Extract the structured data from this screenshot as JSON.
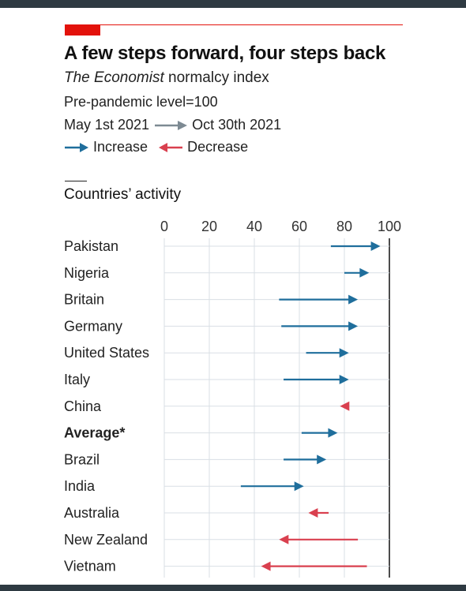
{
  "header": {
    "title": "A few steps forward, four steps back",
    "subtitle_italic": "The Economist",
    "subtitle_rest": " normalcy index",
    "baseline_note": "Pre-pandemic level=100",
    "date_from": "May 1st 2021",
    "date_to": "Oct 30th 2021",
    "legend_increase": "Increase",
    "legend_decrease": "Decrease"
  },
  "section_title": "Countries’ activity",
  "colors": {
    "increase": "#1f6e9c",
    "decrease": "#d9404f",
    "brand_red": "#e3120b",
    "grid": "#d9dfe5"
  },
  "chart_data": {
    "type": "arrow-dot",
    "title": "A few steps forward, four steps back",
    "xlim": [
      0,
      100
    ],
    "xticks": [
      0,
      20,
      40,
      60,
      80,
      100
    ],
    "grid": true,
    "rows": [
      {
        "country": "Pakistan",
        "from": 74,
        "to": 96,
        "direction": "increase",
        "bold": false
      },
      {
        "country": "Nigeria",
        "from": 80,
        "to": 91,
        "direction": "increase",
        "bold": false
      },
      {
        "country": "Britain",
        "from": 51,
        "to": 86,
        "direction": "increase",
        "bold": false
      },
      {
        "country": "Germany",
        "from": 52,
        "to": 86,
        "direction": "increase",
        "bold": false
      },
      {
        "country": "United States",
        "from": 63,
        "to": 82,
        "direction": "increase",
        "bold": false
      },
      {
        "country": "Italy",
        "from": 53,
        "to": 82,
        "direction": "increase",
        "bold": false
      },
      {
        "country": "China",
        "from": 82,
        "to": 78,
        "direction": "decrease",
        "bold": false
      },
      {
        "country": "Average*",
        "from": 61,
        "to": 77,
        "direction": "increase",
        "bold": true
      },
      {
        "country": "Brazil",
        "from": 53,
        "to": 72,
        "direction": "increase",
        "bold": false
      },
      {
        "country": "India",
        "from": 34,
        "to": 62,
        "direction": "increase",
        "bold": false
      },
      {
        "country": "Australia",
        "from": 73,
        "to": 64,
        "direction": "decrease",
        "bold": false
      },
      {
        "country": "New Zealand",
        "from": 86,
        "to": 51,
        "direction": "decrease",
        "bold": false
      },
      {
        "country": "Vietnam",
        "from": 90,
        "to": 43,
        "direction": "decrease",
        "bold": false
      }
    ]
  }
}
